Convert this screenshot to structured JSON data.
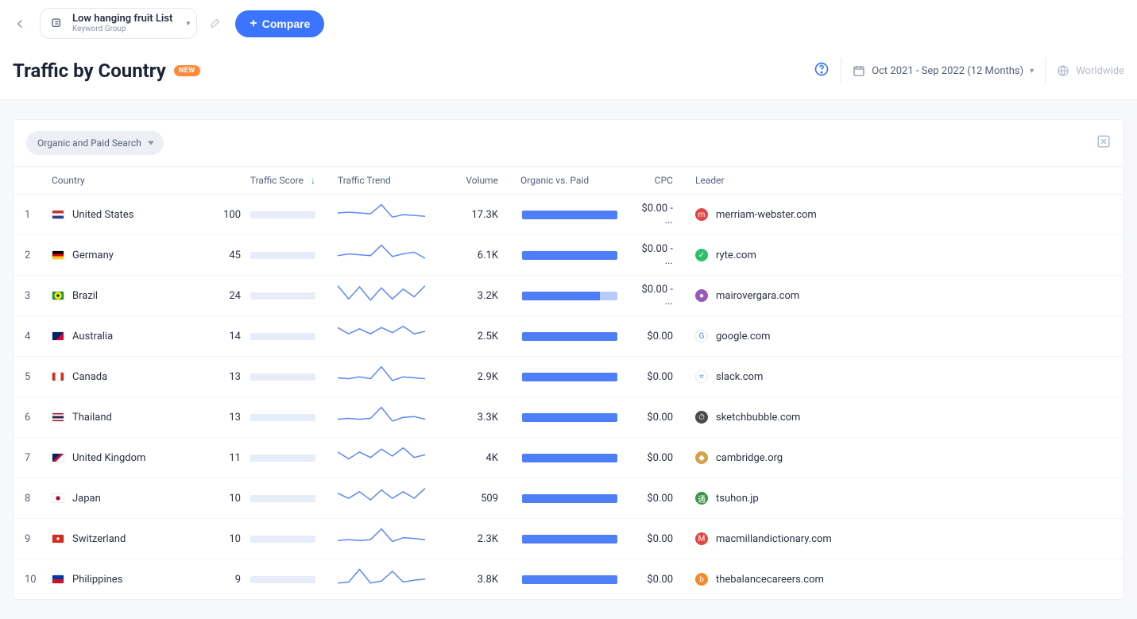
{
  "header": {
    "pill_title": "Low hanging fruit List",
    "pill_subtitle": "Keyword Group",
    "compare_label": "Compare"
  },
  "page": {
    "title": "Traffic by Country",
    "new_badge": "NEW",
    "date_range": "Oct 2021 - Sep 2022 (12 Months)",
    "scope": "Worldwide"
  },
  "panel": {
    "filter_label": "Organic and Paid Search",
    "columns": {
      "country": "Country",
      "traffic_score": "Traffic Score",
      "traffic_trend": "Traffic Trend",
      "volume": "Volume",
      "ovp": "Organic vs. Paid",
      "cpc": "CPC",
      "leader": "Leader"
    }
  },
  "colors": {
    "bar_fill": "#4f7ff8",
    "bar_bg": "#e6ecf8",
    "ovp_fill": "#4f7ff8",
    "ovp_bg": "#b8cdfb",
    "trend_stroke": "#5e87f8"
  },
  "rows": [
    {
      "rank": "1",
      "country": "United States",
      "flag": "us",
      "score": "100",
      "score_pct": 100,
      "trend": [
        20,
        22,
        20,
        18,
        40,
        10,
        16,
        14,
        12
      ],
      "volume": "17.3K",
      "ovp_pct": 100,
      "cpc": "$0.00 - ...",
      "leader": "merriam-webster.com",
      "leader_color": "#e04848",
      "leader_glyph": "m"
    },
    {
      "rank": "2",
      "country": "Germany",
      "flag": "de",
      "score": "45",
      "score_pct": 45,
      "trend": [
        14,
        18,
        16,
        14,
        38,
        12,
        18,
        22,
        8
      ],
      "volume": "6.1K",
      "ovp_pct": 100,
      "cpc": "$0.00 - ...",
      "leader": "ryte.com",
      "leader_color": "#2fbf6a",
      "leader_glyph": "✓"
    },
    {
      "rank": "3",
      "country": "Brazil",
      "flag": "br",
      "score": "24",
      "score_pct": 24,
      "trend": [
        30,
        6,
        28,
        4,
        26,
        6,
        24,
        10,
        30
      ],
      "volume": "3.2K",
      "ovp_pct": 82,
      "cpc": "$0.00 - ...",
      "leader": "mairovergara.com",
      "leader_color": "#9b59b6",
      "leader_glyph": "●"
    },
    {
      "rank": "4",
      "country": "Australia",
      "flag": "au",
      "score": "14",
      "score_pct": 14,
      "trend": [
        24,
        14,
        22,
        14,
        24,
        16,
        26,
        14,
        18
      ],
      "volume": "2.5K",
      "ovp_pct": 100,
      "cpc": "$0.00",
      "leader": "google.com",
      "leader_color": "#ffffff",
      "leader_glyph": "G"
    },
    {
      "rank": "5",
      "country": "Canada",
      "flag": "ca",
      "score": "13",
      "score_pct": 13,
      "trend": [
        12,
        10,
        14,
        10,
        36,
        6,
        14,
        12,
        10
      ],
      "volume": "2.9K",
      "ovp_pct": 100,
      "cpc": "$0.00",
      "leader": "slack.com",
      "leader_color": "#ffffff",
      "leader_glyph": "⌗"
    },
    {
      "rank": "6",
      "country": "Thailand",
      "flag": "th",
      "score": "13",
      "score_pct": 13,
      "trend": [
        10,
        12,
        10,
        12,
        36,
        6,
        14,
        16,
        10
      ],
      "volume": "3.3K",
      "ovp_pct": 100,
      "cpc": "$0.00",
      "leader": "sketchbubble.com",
      "leader_color": "#4a4a4a",
      "leader_glyph": "⏱"
    },
    {
      "rank": "7",
      "country": "United Kingdom",
      "flag": "gb",
      "score": "11",
      "score_pct": 11,
      "trend": [
        18,
        8,
        18,
        10,
        22,
        12,
        24,
        10,
        14
      ],
      "volume": "4K",
      "ovp_pct": 100,
      "cpc": "$0.00",
      "leader": "cambridge.org",
      "leader_color": "#d4a24a",
      "leader_glyph": "◆"
    },
    {
      "rank": "8",
      "country": "Japan",
      "flag": "jp",
      "score": "10",
      "score_pct": 10,
      "trend": [
        14,
        8,
        16,
        6,
        18,
        8,
        16,
        8,
        20
      ],
      "volume": "509",
      "ovp_pct": 100,
      "cpc": "$0.00",
      "leader": "tsuhon.jp",
      "leader_color": "#3a974a",
      "leader_glyph": "通"
    },
    {
      "rank": "9",
      "country": "Switzerland",
      "flag": "ch",
      "score": "10",
      "score_pct": 10,
      "trend": [
        10,
        12,
        10,
        12,
        34,
        8,
        16,
        14,
        12
      ],
      "volume": "2.3K",
      "ovp_pct": 100,
      "cpc": "$0.00",
      "leader": "macmillandictionary.com",
      "leader_color": "#e04848",
      "leader_glyph": "M"
    },
    {
      "rank": "10",
      "country": "Philippines",
      "flag": "ph",
      "score": "9",
      "score_pct": 9,
      "trend": [
        6,
        8,
        34,
        6,
        10,
        30,
        8,
        12,
        14
      ],
      "volume": "3.8K",
      "ovp_pct": 100,
      "cpc": "$0.00",
      "leader": "thebalancecareers.com",
      "leader_color": "#f28c28",
      "leader_glyph": "b"
    }
  ],
  "flags": {
    "us": "linear-gradient(#c0392b 33%, #ffffff 33% 66%, #2c3e8f 66%)",
    "de": "linear-gradient(#000 33%, #dd0000 33% 66%, #ffce00 66%)",
    "br": "radial-gradient(circle at 50% 50%, #002776 20%, #ffdf00 21% 55%, #009b3a 56%)",
    "au": "linear-gradient(135deg,#012169 60%,#e4002b 60%)",
    "ca": "linear-gradient(90deg,#d52b1e 25%,#fff 25% 75%,#d52b1e 75%)",
    "th": "linear-gradient(#a51931 16%,#fff 16% 33%,#2d2a4a 33% 66%,#fff 66% 83%,#a51931 83%)",
    "gb": "linear-gradient(135deg,#012169 40%,#c8102e 40% 60%,#fff 60%)",
    "jp": "radial-gradient(circle at 50% 50%, #bc002d 30%, #fff 31%)",
    "ch": "radial-gradient(circle at 50% 50%, #fff 20%, #d52b1e 21%)",
    "ph": "linear-gradient(#0038a8 50%,#ce1126 50%)"
  }
}
